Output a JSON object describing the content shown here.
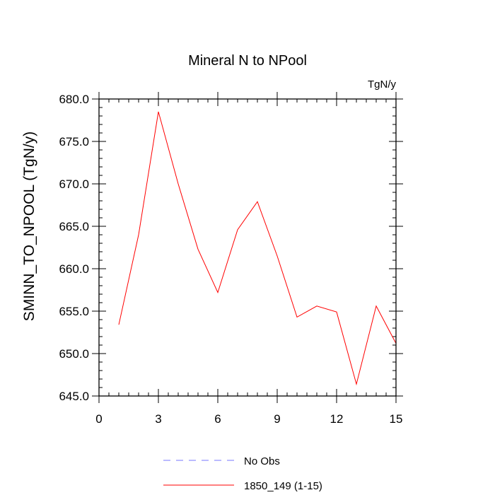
{
  "chart_data": {
    "type": "line",
    "title": "Mineral N to NPool",
    "units_label": "TgN/y",
    "ylabel": "SMINN_TO_NPOOL  (TgN/y)",
    "xlabel": "",
    "xlim": [
      0,
      15
    ],
    "ylim": [
      645,
      680
    ],
    "x_ticks": [
      0,
      3,
      6,
      9,
      12,
      15
    ],
    "x_tick_labels": [
      "0",
      "3",
      "6",
      "9",
      "12",
      "15"
    ],
    "y_ticks": [
      645,
      650,
      655,
      660,
      665,
      670,
      675,
      680
    ],
    "y_tick_labels": [
      "645.0",
      "650.0",
      "655.0",
      "660.0",
      "665.0",
      "670.0",
      "675.0",
      "680.0"
    ],
    "grid": false,
    "legend_position": "bottom",
    "series": [
      {
        "name": "1850_149 (1-15)",
        "color": "#ff0000",
        "style": "solid",
        "x": [
          1,
          2,
          3,
          4,
          5,
          6,
          7,
          8,
          9,
          10,
          11,
          12,
          13,
          14,
          15
        ],
        "y": [
          653.4,
          664.0,
          678.5,
          670.0,
          662.3,
          657.2,
          664.6,
          667.9,
          661.5,
          654.3,
          655.6,
          654.9,
          646.4,
          655.6,
          651.2
        ]
      }
    ],
    "legend": [
      {
        "label": "No Obs",
        "color": "#7777ff",
        "style": "dashed"
      },
      {
        "label": "1850_149 (1-15)",
        "color": "#ff0000",
        "style": "solid"
      }
    ]
  }
}
